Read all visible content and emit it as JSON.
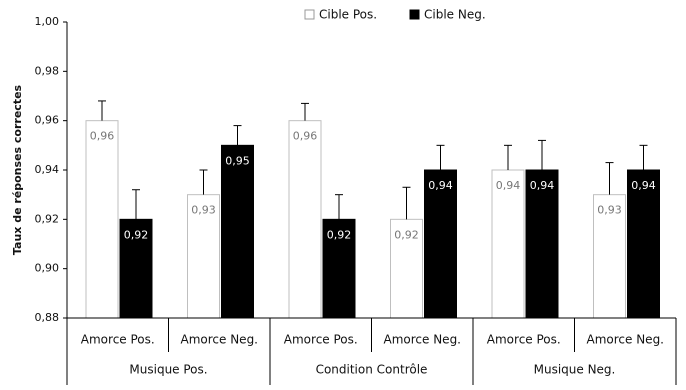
{
  "chart_data": {
    "type": "bar",
    "y_label": "Taux de réponses correctes",
    "categories": [
      "Amorce Pos.",
      "Amorce Neg.",
      "Amorce Pos.",
      "Amorce Neg.",
      "Amorce Pos.",
      "Amorce Neg."
    ],
    "groups": [
      "Musique Pos.",
      "Condition Contrôle",
      "Musique Neg."
    ],
    "series": [
      {
        "name": "Cible Pos.",
        "color": "#ffffff",
        "edgecolor": "#bfbfbf",
        "label_color": "#777777",
        "values": [
          0.96,
          0.93,
          0.96,
          0.92,
          0.94,
          0.93
        ],
        "value_labels": [
          "0,96",
          "0,93",
          "0,96",
          "0,92",
          "0,94",
          "0,93"
        ],
        "errors": [
          0.008,
          0.01,
          0.007,
          0.013,
          0.01,
          0.013
        ]
      },
      {
        "name": "Cible Neg.",
        "color": "#000000",
        "edgecolor": "#000000",
        "label_color": "#ffffff",
        "values": [
          0.92,
          0.95,
          0.92,
          0.94,
          0.94,
          0.94
        ],
        "value_labels": [
          "0,92",
          "0,95",
          "0,92",
          "0,94",
          "0,94",
          "0,94"
        ],
        "errors": [
          0.012,
          0.008,
          0.01,
          0.01,
          0.012,
          0.01
        ]
      }
    ],
    "ylim": [
      0.88,
      1.0
    ],
    "yticks": [
      {
        "value": 0.88,
        "label": "0,88"
      },
      {
        "value": 0.9,
        "label": "0,90"
      },
      {
        "value": 0.92,
        "label": "0,92"
      },
      {
        "value": 0.94,
        "label": "0,94"
      },
      {
        "value": 0.96,
        "label": "0,96"
      },
      {
        "value": 0.98,
        "label": "0,98"
      },
      {
        "value": 1.0,
        "label": "1,00"
      }
    ],
    "legend": "top"
  }
}
